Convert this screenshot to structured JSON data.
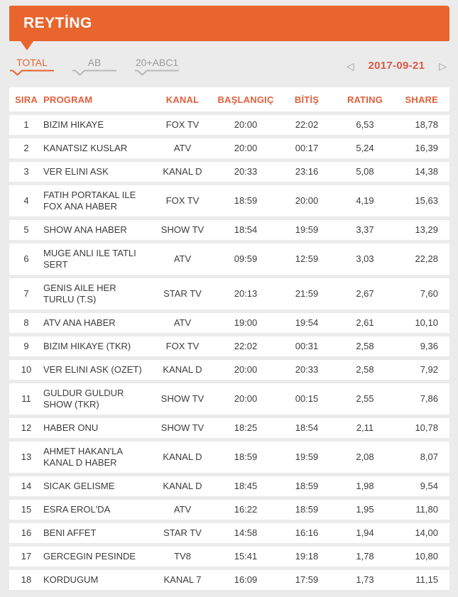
{
  "header": {
    "title": "REYTİNG",
    "accent_color": "#e8652e"
  },
  "tabs": [
    {
      "label": "TOTAL",
      "active": true
    },
    {
      "label": "AB",
      "active": false
    },
    {
      "label": "20+ABC1",
      "active": false
    }
  ],
  "date_nav": {
    "prev_icon": "◁",
    "date": "2017-09-21",
    "next_icon": "▷",
    "date_color": "#dc5845"
  },
  "table": {
    "columns": [
      "SIRA",
      "PROGRAM",
      "KANAL",
      "BAŞLANGIÇ",
      "BİTİŞ",
      "RATING",
      "SHARE"
    ],
    "rows": [
      [
        "1",
        "BIZIM HIKAYE",
        "FOX TV",
        "20:00",
        "22:02",
        "6,53",
        "18,78"
      ],
      [
        "2",
        "KANATSIZ KUSLAR",
        "ATV",
        "20:00",
        "00:17",
        "5,24",
        "16,39"
      ],
      [
        "3",
        "VER ELINI ASK",
        "KANAL D",
        "20:33",
        "23:16",
        "5,08",
        "14,38"
      ],
      [
        "4",
        "FATIH PORTAKAL ILE\nFOX ANA HABER",
        "FOX TV",
        "18:59",
        "20:00",
        "4,19",
        "15,63"
      ],
      [
        "5",
        "SHOW ANA HABER",
        "SHOW TV",
        "18:54",
        "19:59",
        "3,37",
        "13,29"
      ],
      [
        "6",
        "MUGE ANLI ILE TATLI\nSERT",
        "ATV",
        "09:59",
        "12:59",
        "3,03",
        "22,28"
      ],
      [
        "7",
        "GENIS AILE HER\nTURLU (T.S)",
        "STAR TV",
        "20:13",
        "21:59",
        "2,67",
        "7,60"
      ],
      [
        "8",
        "ATV ANA HABER",
        "ATV",
        "19:00",
        "19:54",
        "2,61",
        "10,10"
      ],
      [
        "9",
        "BIZIM HIKAYE (TKR)",
        "FOX TV",
        "22:02",
        "00:31",
        "2,58",
        "9,36"
      ],
      [
        "10",
        "VER ELINI ASK (OZET)",
        "KANAL D",
        "20:00",
        "20:33",
        "2,58",
        "7,92"
      ],
      [
        "11",
        "GULDUR GULDUR\nSHOW (TKR)",
        "SHOW TV",
        "20:00",
        "00:15",
        "2,55",
        "7,86"
      ],
      [
        "12",
        "HABER ONU",
        "SHOW TV",
        "18:25",
        "18:54",
        "2,11",
        "10,78"
      ],
      [
        "13",
        "AHMET HAKAN'LA\nKANAL D HABER",
        "KANAL D",
        "18:59",
        "19:59",
        "2,08",
        "8,07"
      ],
      [
        "14",
        "SICAK GELISME",
        "KANAL D",
        "18:45",
        "18:59",
        "1,98",
        "9,54"
      ],
      [
        "15",
        "ESRA EROL'DA",
        "ATV",
        "16:22",
        "18:59",
        "1,95",
        "11,80"
      ],
      [
        "16",
        "BENI AFFET",
        "STAR TV",
        "14:58",
        "16:16",
        "1,94",
        "14,00"
      ],
      [
        "17",
        "GERCEGIN PESINDE",
        "TV8",
        "15:41",
        "19:18",
        "1,78",
        "10,80"
      ],
      [
        "18",
        "KORDUGUM",
        "KANAL 7",
        "16:09",
        "17:59",
        "1,73",
        "11,15"
      ]
    ]
  }
}
